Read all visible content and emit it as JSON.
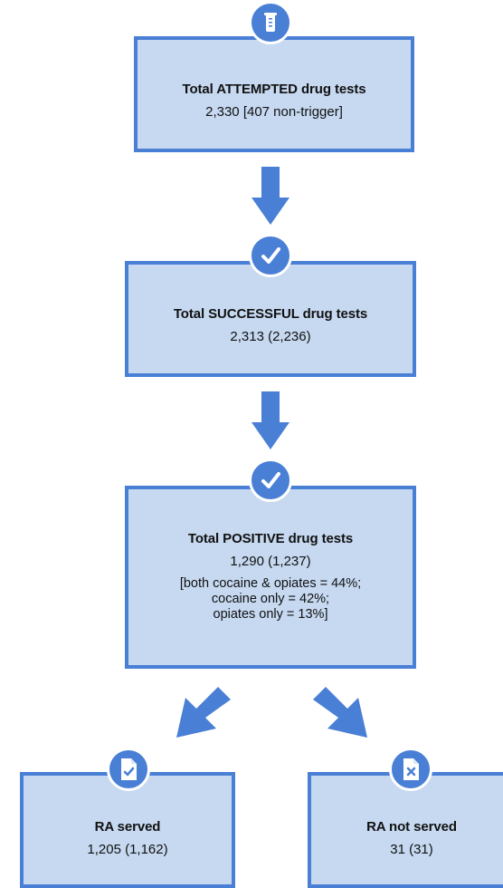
{
  "colors": {
    "fill": "#c6d9f1",
    "stroke": "#4a7fd6",
    "icon": "#ffffff"
  },
  "nodes": [
    {
      "id": "attempted",
      "icon": "test-tube-icon",
      "title": "Total ATTEMPTED drug tests",
      "value": "2,330 [407 non-trigger]"
    },
    {
      "id": "successful",
      "icon": "check-icon",
      "title": "Total SUCCESSFUL drug tests",
      "value": "2,313 (2,236)"
    },
    {
      "id": "positive",
      "icon": "check-icon",
      "title": "Total POSITIVE drug tests",
      "value": "1,290 (1,237)",
      "details": [
        "[both cocaine & opiates = 44%;",
        "cocaine only = 42%;",
        "opiates only = 13%]"
      ]
    },
    {
      "id": "ra_served",
      "icon": "document-check-icon",
      "title": "RA served",
      "value": "1,205 (1,162)"
    },
    {
      "id": "ra_not_served",
      "icon": "document-x-icon",
      "title": "RA not served",
      "value": "31 (31)"
    }
  ]
}
